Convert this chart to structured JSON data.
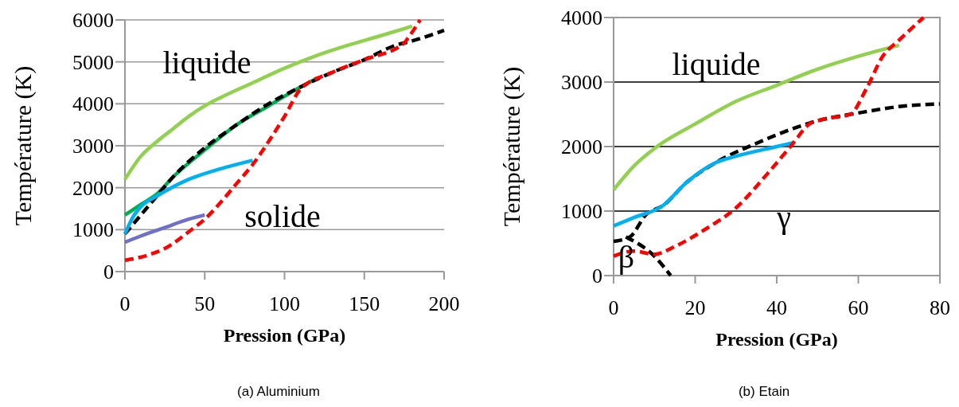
{
  "chart_data": [
    {
      "type": "line",
      "xlabel": "Pression (GPa)",
      "ylabel": "Température (K)",
      "xlim": [
        0,
        200
      ],
      "ylim": [
        0,
        6000
      ],
      "xticks": [
        0,
        50,
        100,
        150,
        200
      ],
      "yticks": [
        0,
        1000,
        2000,
        3000,
        4000,
        5000,
        6000
      ],
      "grid": "y",
      "marker": "none",
      "series": [
        {
          "color": "#92d050",
          "line_style": "solid",
          "x": [
            0,
            10,
            20,
            30,
            40,
            50,
            60,
            80,
            100,
            120,
            140,
            160,
            180
          ],
          "values": [
            2200,
            2750,
            3100,
            3400,
            3700,
            3950,
            4150,
            4500,
            4850,
            5150,
            5400,
            5620,
            5850
          ]
        },
        {
          "color": "#00b050",
          "line_style": "solid",
          "x": [
            0,
            10,
            20,
            30,
            50,
            70,
            90,
            110,
            120
          ],
          "values": [
            1350,
            1600,
            1850,
            2250,
            2900,
            3500,
            3950,
            4400,
            4600
          ]
        },
        {
          "color": "#000000",
          "line_style": "dashed",
          "x": [
            0,
            10,
            20,
            30,
            50,
            70,
            90,
            110,
            130,
            150,
            170,
            180,
            200
          ],
          "values": [
            900,
            1350,
            1800,
            2250,
            2950,
            3500,
            4000,
            4400,
            4750,
            5050,
            5400,
            5500,
            5750
          ]
        },
        {
          "color": "#00b0f0",
          "line_style": "solid",
          "x": [
            0,
            5,
            10,
            20,
            40,
            60,
            80
          ],
          "values": [
            900,
            1300,
            1550,
            1800,
            2200,
            2450,
            2650
          ]
        },
        {
          "color": "#7070c8",
          "line_style": "solid",
          "x": [
            0,
            10,
            25,
            40,
            50
          ],
          "values": [
            700,
            850,
            1050,
            1250,
            1350
          ]
        },
        {
          "color": "#ff0000",
          "line_style": "dashed",
          "x": [
            0,
            15,
            25,
            40,
            50,
            60,
            70,
            80,
            90,
            100,
            110,
            130,
            150,
            175,
            178,
            185
          ],
          "values": [
            270,
            400,
            550,
            950,
            1250,
            1650,
            2100,
            2550,
            3100,
            3700,
            4350,
            4750,
            5050,
            5450,
            5600,
            6000
          ]
        }
      ],
      "annotations": [
        "liquide",
        "solide",
        "(a) Aluminium"
      ]
    },
    {
      "type": "line",
      "xlabel": "Pression (GPa)",
      "ylabel": "Température (K)",
      "xlim": [
        0,
        80
      ],
      "ylim": [
        0,
        4000
      ],
      "xticks": [
        0,
        20,
        40,
        60,
        80
      ],
      "yticks": [
        0,
        1000,
        2000,
        3000,
        4000
      ],
      "grid": "y",
      "marker": "none",
      "series": [
        {
          "color": "#92d050",
          "line_style": "solid",
          "x": [
            0,
            5,
            10,
            20,
            30,
            40,
            50,
            60,
            70
          ],
          "values": [
            1330,
            1700,
            1970,
            2350,
            2700,
            2950,
            3200,
            3400,
            3570
          ]
        },
        {
          "color": "#000000",
          "line_style": "dashed",
          "x": [
            0,
            4,
            8,
            12,
            18,
            25,
            35,
            45,
            50,
            60,
            70,
            80
          ],
          "values": [
            530,
            600,
            950,
            1080,
            1450,
            1750,
            2050,
            2300,
            2400,
            2520,
            2620,
            2660
          ]
        },
        {
          "color": "#000000",
          "line_style": "dashed",
          "x": [
            3,
            10,
            14
          ],
          "values": [
            600,
            300,
            0
          ]
        },
        {
          "color": "#00b0f0",
          "line_style": "solid",
          "x": [
            0,
            5,
            12,
            18,
            25,
            30,
            40,
            44
          ],
          "values": [
            770,
            900,
            1080,
            1450,
            1750,
            1850,
            2000,
            2060
          ]
        },
        {
          "color": "#ff0000",
          "line_style": "dashed",
          "x": [
            0,
            5,
            10,
            15,
            22,
            30,
            38,
            44,
            48,
            52,
            58,
            62,
            66,
            70,
            76
          ],
          "values": [
            300,
            380,
            330,
            450,
            700,
            1050,
            1600,
            2050,
            2350,
            2430,
            2500,
            2900,
            3400,
            3650,
            4000
          ]
        }
      ],
      "annotations": [
        "liquide",
        "γ",
        "β",
        "(b) Etain"
      ]
    }
  ]
}
